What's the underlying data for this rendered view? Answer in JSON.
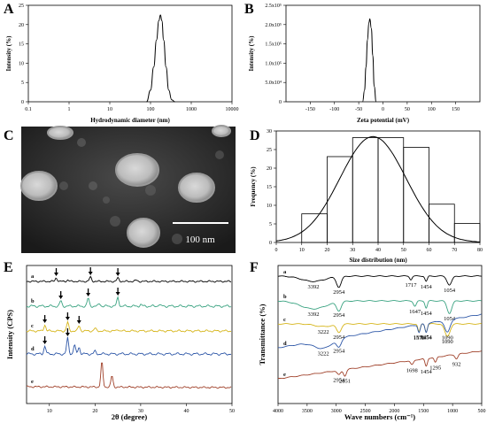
{
  "chart_data": [
    {
      "panel": "A",
      "type": "line",
      "xlabel": "Hydrodynamic diameter (nm)",
      "ylabel": "Intensity (%)",
      "xscale": "log",
      "xlim": [
        0.1,
        10000
      ],
      "ylim": [
        0,
        25
      ],
      "xticks": [
        "0.1",
        "1",
        "10",
        "100",
        "1000",
        "10000"
      ],
      "yticks": [
        "0",
        "5",
        "10",
        "15",
        "20",
        "25"
      ],
      "x": [
        80,
        100,
        120,
        140,
        160,
        175,
        190,
        210,
        240,
        280,
        330,
        400
      ],
      "y": [
        0,
        3,
        9,
        16,
        21,
        22.5,
        21,
        16,
        9,
        3,
        0.5,
        0
      ]
    },
    {
      "panel": "B",
      "type": "line",
      "xlabel": "Zeta potential (mV)",
      "ylabel": "Intensity (%)",
      "xlim": [
        -200,
        200
      ],
      "ylim": [
        0,
        250000
      ],
      "xticks": [
        "-150",
        "-100",
        "-50",
        "0",
        "50",
        "100",
        "150"
      ],
      "yticks": [
        "0",
        "5.0x10⁴",
        "1.0x10⁵",
        "1.5x10⁵",
        "2.0x10⁵",
        "2.5x10⁵"
      ],
      "x": [
        -42,
        -38,
        -35,
        -32,
        -29,
        -27,
        -24,
        -21,
        -18,
        -14
      ],
      "y": [
        0,
        30000,
        90000,
        160000,
        205000,
        215000,
        190000,
        120000,
        40000,
        0
      ]
    },
    {
      "panel": "C",
      "type": "image",
      "scale_label": "100 nm"
    },
    {
      "panel": "D",
      "type": "bar",
      "xlabel": "Size distribution (nm)",
      "ylabel": "Frequency (%)",
      "xlim": [
        0,
        80
      ],
      "ylim": [
        0,
        30
      ],
      "xticks": [
        "0",
        "10",
        "20",
        "30",
        "40",
        "50",
        "60",
        "70",
        "80"
      ],
      "yticks": [
        "0",
        "5",
        "10",
        "15",
        "20",
        "25",
        "30"
      ],
      "bin_edges": [
        10,
        20,
        30,
        40,
        50,
        60,
        70
      ],
      "values": [
        7.7,
        23.1,
        28.2,
        28.2,
        25.6,
        10.3,
        5.1
      ],
      "fit": {
        "mean": 38,
        "sd": 13,
        "peak": 28.5
      }
    },
    {
      "panel": "E",
      "type": "line",
      "xlabel": "2θ (degree)",
      "ylabel": "Intensity (CPS)",
      "xlim": [
        5,
        50
      ],
      "xticks": [
        "10",
        "20",
        "30",
        "40",
        "50"
      ],
      "traces": [
        "a",
        "b",
        "c",
        "d",
        "e"
      ],
      "colors": [
        "#000000",
        "#3aa381",
        "#d6b51a",
        "#2f58a8",
        "#a0412a"
      ],
      "arrows": [
        {
          "trace": "a",
          "x": [
            11.5,
            19,
            25
          ]
        },
        {
          "trace": "b",
          "x": [
            12.5,
            18.5,
            25
          ]
        },
        {
          "trace": "c",
          "x": [
            9,
            14,
            16.5
          ]
        },
        {
          "trace": "d",
          "x": [
            9,
            14
          ]
        }
      ],
      "peaks_e": [
        21.5,
        23.7
      ]
    },
    {
      "panel": "F",
      "type": "line",
      "xlabel": "Wave numbers (cm⁻¹)",
      "ylabel": "Transmittance (%)",
      "xlim": [
        4000,
        500
      ],
      "xticks": [
        "4000",
        "3500",
        "3000",
        "2500",
        "2000",
        "1500",
        "1000",
        "500"
      ],
      "traces": [
        "a",
        "b",
        "c",
        "d",
        "e"
      ],
      "colors": [
        "#000000",
        "#3aa381",
        "#d6b51a",
        "#2f58a8",
        "#a0412a"
      ],
      "annotations": {
        "a": [
          "3392",
          "2954",
          "1717",
          "1454",
          "1054"
        ],
        "b": [
          "3392",
          "2954",
          "1647",
          "1454",
          "1054"
        ],
        "c": [
          "3222",
          "2954",
          "1576",
          "1454",
          "1090"
        ],
        "d": [
          "3222",
          "2954",
          "1576",
          "1454",
          "1090"
        ],
        "e": [
          "2954",
          "2851",
          "1698",
          "1454",
          "1295",
          "932"
        ]
      }
    }
  ],
  "labels": {
    "A": "A",
    "B": "B",
    "C": "C",
    "D": "D",
    "E": "E",
    "F": "F"
  }
}
